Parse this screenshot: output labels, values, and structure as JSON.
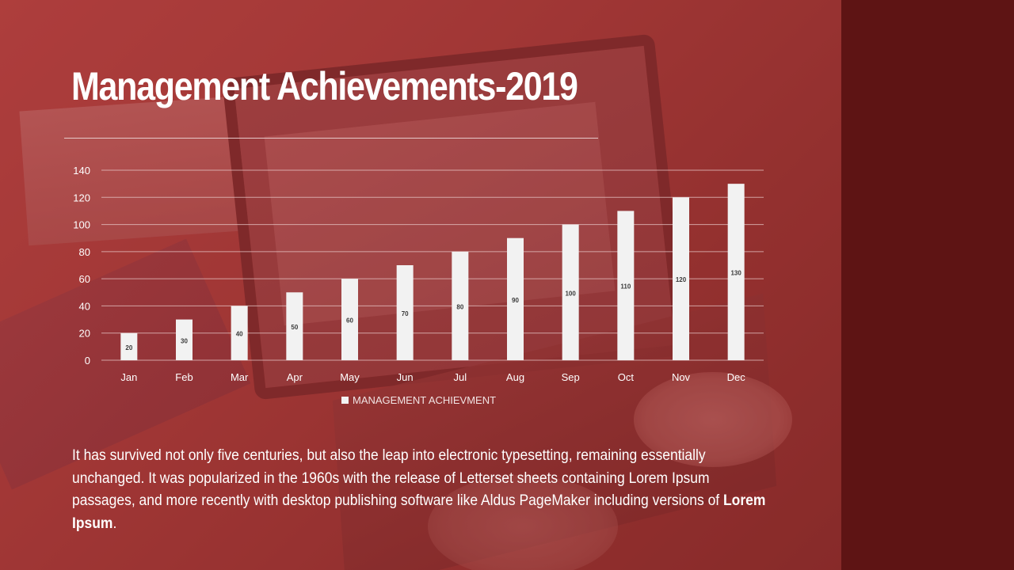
{
  "slide": {
    "title": "Management Achievements-2019",
    "body_text": "It has survived not only five centuries, but also the leap into electronic typesetting, remaining essentially unchanged. It was popularized in the 1960s with the release of Letterset sheets containing Lorem Ipsum passages, and more recently with desktop publishing software like Aldus PageMaker including versions of ",
    "body_emphasis": "Lorem Ipsum",
    "body_end": "."
  },
  "colors": {
    "sidebar": "#5e1414",
    "bar": "#f2f2f2",
    "gridline": "#e8c8c8",
    "text": "#ffffff"
  },
  "chart_data": {
    "type": "bar",
    "categories": [
      "Jan",
      "Feb",
      "Mar",
      "Apr",
      "May",
      "Jun",
      "Jul",
      "Aug",
      "Sep",
      "Oct",
      "Nov",
      "Dec"
    ],
    "series": [
      {
        "name": "MANAGEMENT ACHIEVMENT",
        "values": [
          20,
          30,
          40,
          50,
          60,
          70,
          80,
          90,
          100,
          110,
          120,
          130
        ]
      }
    ],
    "ylim": [
      0,
      140
    ],
    "yticks": [
      0,
      20,
      40,
      60,
      80,
      100,
      120,
      140
    ],
    "grid": true,
    "legend_position": "bottom",
    "data_labels": true
  }
}
